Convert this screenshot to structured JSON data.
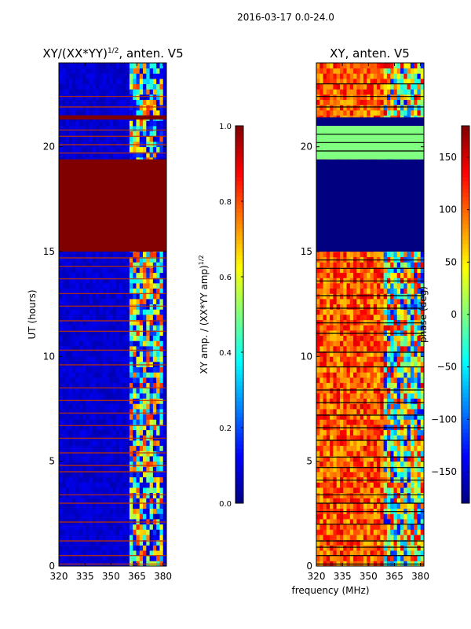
{
  "figure_title": "2016-03-17 0.0-24.0",
  "common_xlabel": "frequency (MHz)",
  "chart_data": [
    {
      "type": "heatmap",
      "title_main": "XY/(XX*YY)",
      "title_exp": "1/2",
      "title_tail": ", anten. V5",
      "xlabel": "",
      "ylabel": "UT (hours)",
      "xlim": [
        320,
        382
      ],
      "ylim": [
        0,
        24
      ],
      "xticks": [
        320,
        335,
        350,
        365,
        380
      ],
      "yticks": [
        0,
        5,
        10,
        15,
        20
      ],
      "colorbar": {
        "label_main": "XY amp. / (XX*YY amp)",
        "label_exp": "1/2",
        "range": [
          0.0,
          1.0
        ],
        "ticks": [
          "0.0",
          "0.2",
          "0.4",
          "0.6",
          "0.8",
          "1.0"
        ],
        "tick_values": [
          0.0,
          0.2,
          0.4,
          0.6,
          0.8,
          1.0
        ],
        "colormap": "jet"
      },
      "regions": [
        {
          "ut_start": 15.0,
          "ut_end": 19.4,
          "value": 1.0,
          "note": "saturated block"
        },
        {
          "ut_start": 21.3,
          "ut_end": 21.5,
          "value": 1.0,
          "note": "saturated band"
        }
      ],
      "background_value": 0.05,
      "active_band_mhz": [
        361,
        380
      ],
      "active_band_value_range": [
        0.3,
        0.85
      ],
      "flag_lines_ut": [
        0.1,
        0.5,
        1.2,
        2.1,
        3.0,
        3.4,
        4.5,
        4.8,
        5.4,
        6.1,
        6.7,
        7.3,
        7.9,
        8.5,
        9.6,
        10.3,
        11.2,
        11.7,
        12.4,
        13.0,
        13.7,
        14.3,
        14.7,
        19.7,
        20.1,
        20.5,
        20.8,
        21.9,
        22.4
      ]
    },
    {
      "type": "heatmap",
      "title_main": "XY, anten. V5",
      "xlabel": "frequency (MHz)",
      "ylabel": "",
      "xlim": [
        320,
        382
      ],
      "ylim": [
        0,
        24
      ],
      "xticks": [
        320,
        335,
        350,
        365,
        380
      ],
      "yticks": [
        0,
        5,
        10,
        15,
        20
      ],
      "colorbar": {
        "label_main": "phase (deg)",
        "range": [
          -180,
          180
        ],
        "ticks": [
          "−150",
          "−100",
          "−50",
          "0",
          "50",
          "100",
          "150"
        ],
        "tick_values": [
          -150,
          -100,
          -50,
          0,
          50,
          100,
          150
        ],
        "colormap": "jet"
      },
      "regions": [
        {
          "ut_start": 15.0,
          "ut_end": 19.4,
          "value": -180,
          "note": "dark blue block"
        },
        {
          "ut_start": 19.4,
          "ut_end": 21.0,
          "value": 0,
          "note": "green band with black lines"
        },
        {
          "ut_start": 21.0,
          "ut_end": 21.4,
          "value": -180,
          "note": "dark band"
        }
      ],
      "low_band_value_range": [
        60,
        150
      ],
      "high_band_mhz": [
        358,
        382
      ],
      "high_band_value_range": [
        -140,
        150
      ],
      "flag_lines_ut": [
        0.1,
        0.5,
        0.9,
        1.2,
        2.0,
        2.6,
        3.0,
        3.4,
        4.1,
        4.7,
        5.2,
        6.0,
        6.6,
        7.2,
        7.8,
        8.4,
        9.5,
        10.2,
        11.1,
        11.6,
        12.3,
        12.9,
        13.6,
        14.2,
        14.6,
        19.8,
        20.2,
        20.6,
        21.9,
        22.4,
        23.0
      ]
    }
  ]
}
